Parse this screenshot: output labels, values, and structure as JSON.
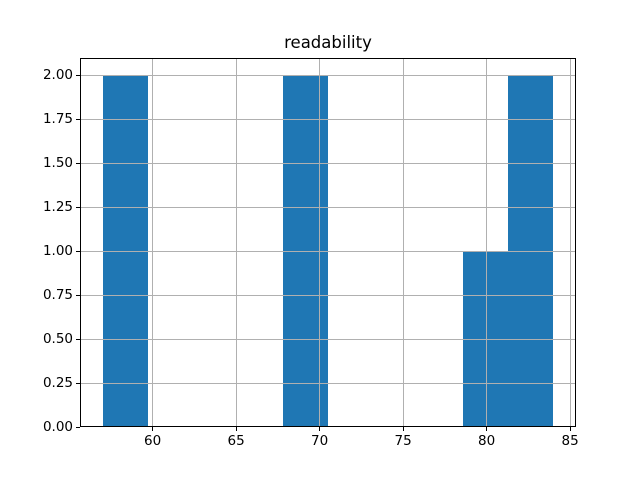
{
  "chart_data": {
    "type": "bar",
    "subtype": "histogram",
    "title": "readability",
    "xlabel": "",
    "ylabel": "",
    "bins": [
      {
        "x0": 57.0,
        "x1": 59.7,
        "count": 2
      },
      {
        "x0": 59.7,
        "x1": 62.4,
        "count": 0
      },
      {
        "x0": 62.4,
        "x1": 65.1,
        "count": 0
      },
      {
        "x0": 65.1,
        "x1": 67.8,
        "count": 0
      },
      {
        "x0": 67.8,
        "x1": 70.5,
        "count": 2
      },
      {
        "x0": 70.5,
        "x1": 73.2,
        "count": 0
      },
      {
        "x0": 73.2,
        "x1": 75.9,
        "count": 0
      },
      {
        "x0": 75.9,
        "x1": 78.6,
        "count": 0
      },
      {
        "x0": 78.6,
        "x1": 81.3,
        "count": 1
      },
      {
        "x0": 81.3,
        "x1": 84.0,
        "count": 2
      }
    ],
    "xticks": [
      {
        "value": 60,
        "label": "60"
      },
      {
        "value": 65,
        "label": "65"
      },
      {
        "value": 70,
        "label": "70"
      },
      {
        "value": 75,
        "label": "75"
      },
      {
        "value": 80,
        "label": "80"
      },
      {
        "value": 85,
        "label": "85"
      }
    ],
    "yticks": [
      {
        "value": 0.0,
        "label": "0.00"
      },
      {
        "value": 0.25,
        "label": "0.25"
      },
      {
        "value": 0.5,
        "label": "0.50"
      },
      {
        "value": 0.75,
        "label": "0.75"
      },
      {
        "value": 1.0,
        "label": "1.00"
      },
      {
        "value": 1.25,
        "label": "1.25"
      },
      {
        "value": 1.5,
        "label": "1.50"
      },
      {
        "value": 1.75,
        "label": "1.75"
      },
      {
        "value": 2.0,
        "label": "2.00"
      }
    ],
    "xlim": [
      55.65,
      85.35
    ],
    "ylim": [
      0,
      2.1
    ],
    "grid": true,
    "grid_on_top": true,
    "legend": false,
    "colors": {
      "bar": "#1f77b4",
      "grid": "#b0b0b0",
      "spine": "#000000",
      "background": "#ffffff",
      "text": "#000000"
    }
  }
}
